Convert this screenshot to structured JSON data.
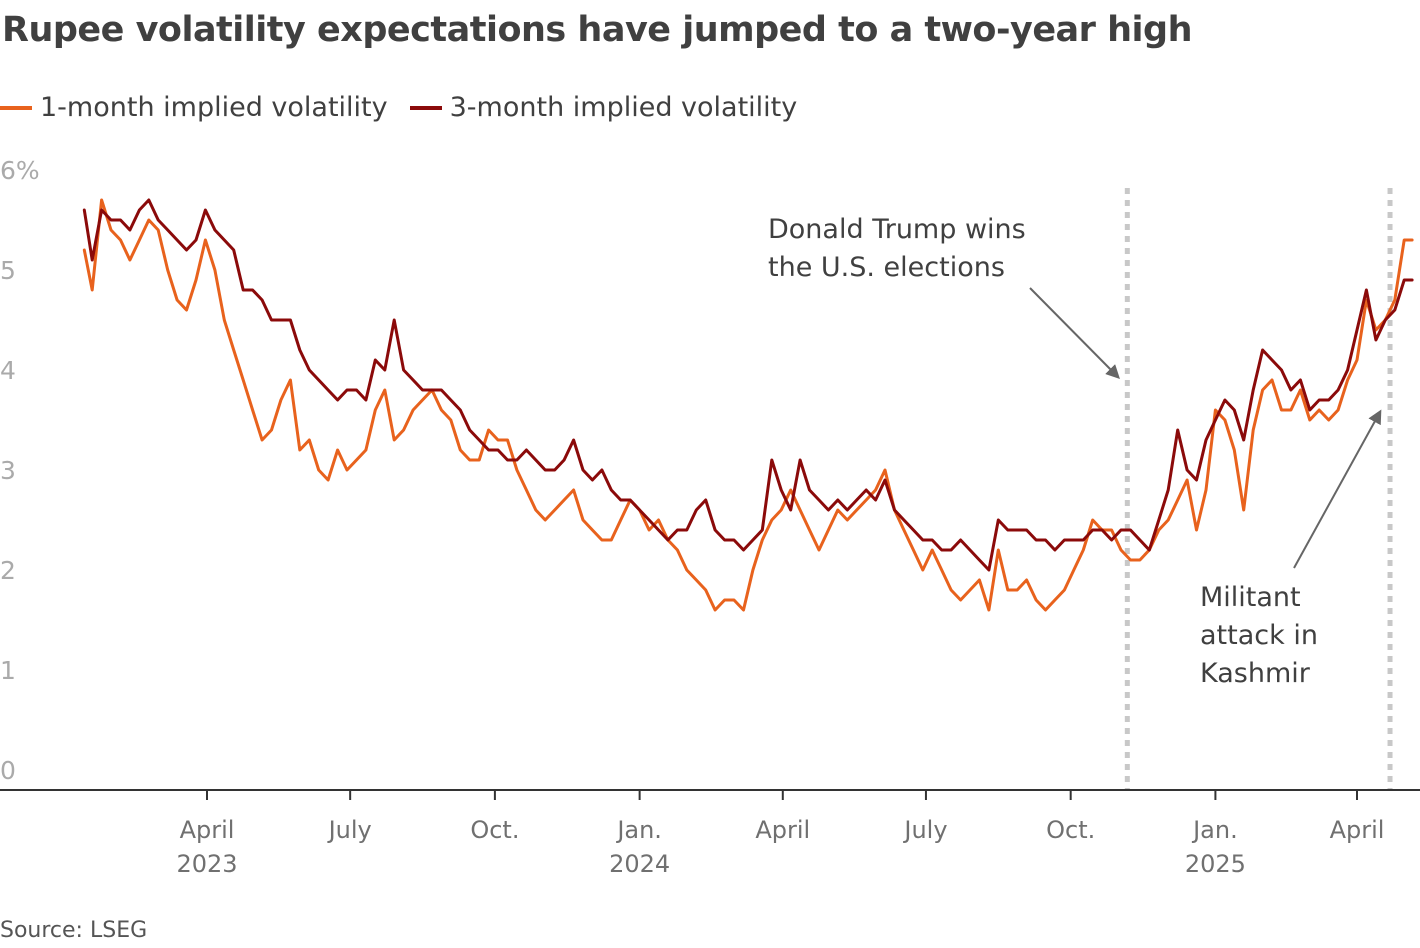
{
  "colors": {
    "series_1m": "#e8621d",
    "series_3m": "#8b0a0a",
    "text": "#404040",
    "tick_label": "#707070",
    "y_label": "#aaaaaa",
    "axis": "#333333",
    "event_line": "#c8c8c8",
    "arrow": "#666666"
  },
  "source": "Source: LSEG",
  "chart_data": {
    "type": "line",
    "title": "Rupee volatility expectations have jumped to a two-year high",
    "xlabel": "",
    "ylabel": "",
    "ylim": [
      0,
      6
    ],
    "y_unit": "%",
    "y_ticks": [
      {
        "value": 0,
        "label": "0"
      },
      {
        "value": 1,
        "label": "1"
      },
      {
        "value": 2,
        "label": "2"
      },
      {
        "value": 3,
        "label": "3"
      },
      {
        "value": 4,
        "label": "4"
      },
      {
        "value": 5,
        "label": "5"
      },
      {
        "value": 6,
        "label": "6%"
      }
    ],
    "x_range": [
      "2023-01-01",
      "2025-05-06"
    ],
    "x_ticks": [
      {
        "date": "2023-04-01",
        "label": "April",
        "year": "2023"
      },
      {
        "date": "2023-07-01",
        "label": "July",
        "year": ""
      },
      {
        "date": "2023-10-01",
        "label": "Oct.",
        "year": ""
      },
      {
        "date": "2024-01-01",
        "label": "Jan.",
        "year": "2024"
      },
      {
        "date": "2024-04-01",
        "label": "April",
        "year": ""
      },
      {
        "date": "2024-07-01",
        "label": "July",
        "year": ""
      },
      {
        "date": "2024-10-01",
        "label": "Oct.",
        "year": ""
      },
      {
        "date": "2025-01-01",
        "label": "Jan.",
        "year": "2025"
      },
      {
        "date": "2025-04-01",
        "label": "April",
        "year": ""
      }
    ],
    "series": [
      {
        "name": "1-month implied volatility",
        "x": [
          "2023-01-13",
          "2023-01-18",
          "2023-01-24",
          "2023-01-30",
          "2023-02-05",
          "2023-02-11",
          "2023-02-17",
          "2023-02-23",
          "2023-03-01",
          "2023-03-07",
          "2023-03-13",
          "2023-03-19",
          "2023-03-25",
          "2023-03-31",
          "2023-04-06",
          "2023-04-12",
          "2023-04-18",
          "2023-04-24",
          "2023-04-30",
          "2023-05-06",
          "2023-05-12",
          "2023-05-18",
          "2023-05-24",
          "2023-05-30",
          "2023-06-05",
          "2023-06-11",
          "2023-06-17",
          "2023-06-23",
          "2023-06-29",
          "2023-07-05",
          "2023-07-11",
          "2023-07-17",
          "2023-07-23",
          "2023-07-29",
          "2023-08-04",
          "2023-08-10",
          "2023-08-16",
          "2023-08-22",
          "2023-08-28",
          "2023-09-03",
          "2023-09-09",
          "2023-09-15",
          "2023-09-21",
          "2023-09-27",
          "2023-10-03",
          "2023-10-09",
          "2023-10-15",
          "2023-10-21",
          "2023-10-27",
          "2023-11-02",
          "2023-11-08",
          "2023-11-14",
          "2023-11-20",
          "2023-11-26",
          "2023-12-02",
          "2023-12-08",
          "2023-12-14",
          "2023-12-20",
          "2023-12-26",
          "2024-01-01",
          "2024-01-07",
          "2024-01-13",
          "2024-01-19",
          "2024-01-25",
          "2024-01-31",
          "2024-02-06",
          "2024-02-12",
          "2024-02-18",
          "2024-02-24",
          "2024-03-01",
          "2024-03-07",
          "2024-03-13",
          "2024-03-19",
          "2024-03-25",
          "2024-03-31",
          "2024-04-06",
          "2024-04-12",
          "2024-04-18",
          "2024-04-24",
          "2024-04-30",
          "2024-05-06",
          "2024-05-12",
          "2024-05-18",
          "2024-05-24",
          "2024-05-30",
          "2024-06-05",
          "2024-06-11",
          "2024-06-17",
          "2024-06-23",
          "2024-06-29",
          "2024-07-05",
          "2024-07-11",
          "2024-07-17",
          "2024-07-23",
          "2024-07-29",
          "2024-08-04",
          "2024-08-10",
          "2024-08-16",
          "2024-08-22",
          "2024-08-28",
          "2024-09-03",
          "2024-09-09",
          "2024-09-15",
          "2024-09-21",
          "2024-09-27",
          "2024-10-03",
          "2024-10-09",
          "2024-10-15",
          "2024-10-21",
          "2024-10-27",
          "2024-11-02",
          "2024-11-08",
          "2024-11-14",
          "2024-11-20",
          "2024-11-26",
          "2024-12-02",
          "2024-12-08",
          "2024-12-14",
          "2024-12-20",
          "2024-12-26",
          "2025-01-01",
          "2025-01-07",
          "2025-01-13",
          "2025-01-19",
          "2025-01-25",
          "2025-01-31",
          "2025-02-06",
          "2025-02-12",
          "2025-02-18",
          "2025-02-24",
          "2025-03-02",
          "2025-03-08",
          "2025-03-14",
          "2025-03-20",
          "2025-03-26",
          "2025-04-01",
          "2025-04-07",
          "2025-04-13",
          "2025-04-19",
          "2025-04-25",
          "2025-05-01",
          "2025-05-06"
        ],
        "values": [
          5.2,
          4.8,
          5.7,
          5.4,
          5.3,
          5.1,
          5.3,
          5.5,
          5.4,
          5.0,
          4.7,
          4.6,
          4.9,
          5.3,
          5.0,
          4.5,
          4.2,
          3.9,
          3.6,
          3.3,
          3.4,
          3.7,
          3.9,
          3.2,
          3.3,
          3.0,
          2.9,
          3.2,
          3.0,
          3.1,
          3.2,
          3.6,
          3.8,
          3.3,
          3.4,
          3.6,
          3.7,
          3.8,
          3.6,
          3.5,
          3.2,
          3.1,
          3.1,
          3.4,
          3.3,
          3.3,
          3.0,
          2.8,
          2.6,
          2.5,
          2.6,
          2.7,
          2.8,
          2.5,
          2.4,
          2.3,
          2.3,
          2.5,
          2.7,
          2.6,
          2.4,
          2.5,
          2.3,
          2.2,
          2.0,
          1.9,
          1.8,
          1.6,
          1.7,
          1.7,
          1.6,
          2.0,
          2.3,
          2.5,
          2.6,
          2.8,
          2.6,
          2.4,
          2.2,
          2.4,
          2.6,
          2.5,
          2.6,
          2.7,
          2.8,
          3.0,
          2.6,
          2.4,
          2.2,
          2.0,
          2.2,
          2.0,
          1.8,
          1.7,
          1.8,
          1.9,
          1.6,
          2.2,
          1.8,
          1.8,
          1.9,
          1.7,
          1.6,
          1.7,
          1.8,
          2.0,
          2.2,
          2.5,
          2.4,
          2.4,
          2.2,
          2.1,
          2.1,
          2.2,
          2.4,
          2.5,
          2.7,
          2.9,
          2.4,
          2.8,
          3.6,
          3.5,
          3.2,
          2.6,
          3.4,
          3.8,
          3.9,
          3.6,
          3.6,
          3.8,
          3.5,
          3.6,
          3.5,
          3.6,
          3.9,
          4.1,
          4.7,
          4.4,
          4.5,
          4.7,
          5.3,
          5.3
        ],
        "color": "#e8621d"
      },
      {
        "name": "3-month implied volatility",
        "x": [
          "2023-01-13",
          "2023-01-18",
          "2023-01-24",
          "2023-01-30",
          "2023-02-05",
          "2023-02-11",
          "2023-02-17",
          "2023-02-23",
          "2023-03-01",
          "2023-03-07",
          "2023-03-13",
          "2023-03-19",
          "2023-03-25",
          "2023-03-31",
          "2023-04-06",
          "2023-04-12",
          "2023-04-18",
          "2023-04-24",
          "2023-04-30",
          "2023-05-06",
          "2023-05-12",
          "2023-05-18",
          "2023-05-24",
          "2023-05-30",
          "2023-06-05",
          "2023-06-11",
          "2023-06-17",
          "2023-06-23",
          "2023-06-29",
          "2023-07-05",
          "2023-07-11",
          "2023-07-17",
          "2023-07-23",
          "2023-07-29",
          "2023-08-04",
          "2023-08-10",
          "2023-08-16",
          "2023-08-22",
          "2023-08-28",
          "2023-09-03",
          "2023-09-09",
          "2023-09-15",
          "2023-09-21",
          "2023-09-27",
          "2023-10-03",
          "2023-10-09",
          "2023-10-15",
          "2023-10-21",
          "2023-10-27",
          "2023-11-02",
          "2023-11-08",
          "2023-11-14",
          "2023-11-20",
          "2023-11-26",
          "2023-12-02",
          "2023-12-08",
          "2023-12-14",
          "2023-12-20",
          "2023-12-26",
          "2024-01-01",
          "2024-01-07",
          "2024-01-13",
          "2024-01-19",
          "2024-01-25",
          "2024-01-31",
          "2024-02-06",
          "2024-02-12",
          "2024-02-18",
          "2024-02-24",
          "2024-03-01",
          "2024-03-07",
          "2024-03-13",
          "2024-03-19",
          "2024-03-25",
          "2024-03-31",
          "2024-04-06",
          "2024-04-12",
          "2024-04-18",
          "2024-04-24",
          "2024-04-30",
          "2024-05-06",
          "2024-05-12",
          "2024-05-18",
          "2024-05-24",
          "2024-05-30",
          "2024-06-05",
          "2024-06-11",
          "2024-06-17",
          "2024-06-23",
          "2024-06-29",
          "2024-07-05",
          "2024-07-11",
          "2024-07-17",
          "2024-07-23",
          "2024-07-29",
          "2024-08-04",
          "2024-08-10",
          "2024-08-16",
          "2024-08-22",
          "2024-08-28",
          "2024-09-03",
          "2024-09-09",
          "2024-09-15",
          "2024-09-21",
          "2024-09-27",
          "2024-10-03",
          "2024-10-09",
          "2024-10-15",
          "2024-10-21",
          "2024-10-27",
          "2024-11-02",
          "2024-11-08",
          "2024-11-14",
          "2024-11-20",
          "2024-11-26",
          "2024-12-02",
          "2024-12-08",
          "2024-12-14",
          "2024-12-20",
          "2024-12-26",
          "2025-01-01",
          "2025-01-07",
          "2025-01-13",
          "2025-01-19",
          "2025-01-25",
          "2025-01-31",
          "2025-02-06",
          "2025-02-12",
          "2025-02-18",
          "2025-02-24",
          "2025-03-02",
          "2025-03-08",
          "2025-03-14",
          "2025-03-20",
          "2025-03-26",
          "2025-04-01",
          "2025-04-07",
          "2025-04-13",
          "2025-04-19",
          "2025-04-25",
          "2025-05-01",
          "2025-05-06"
        ],
        "values": [
          5.6,
          5.1,
          5.6,
          5.5,
          5.5,
          5.4,
          5.6,
          5.7,
          5.5,
          5.4,
          5.3,
          5.2,
          5.3,
          5.6,
          5.4,
          5.3,
          5.2,
          4.8,
          4.8,
          4.7,
          4.5,
          4.5,
          4.5,
          4.2,
          4.0,
          3.9,
          3.8,
          3.7,
          3.8,
          3.8,
          3.7,
          4.1,
          4.0,
          4.5,
          4.0,
          3.9,
          3.8,
          3.8,
          3.8,
          3.7,
          3.6,
          3.4,
          3.3,
          3.2,
          3.2,
          3.1,
          3.1,
          3.2,
          3.1,
          3.0,
          3.0,
          3.1,
          3.3,
          3.0,
          2.9,
          3.0,
          2.8,
          2.7,
          2.7,
          2.6,
          2.5,
          2.4,
          2.3,
          2.4,
          2.4,
          2.6,
          2.7,
          2.4,
          2.3,
          2.3,
          2.2,
          2.3,
          2.4,
          3.1,
          2.8,
          2.6,
          3.1,
          2.8,
          2.7,
          2.6,
          2.7,
          2.6,
          2.7,
          2.8,
          2.7,
          2.9,
          2.6,
          2.5,
          2.4,
          2.3,
          2.3,
          2.2,
          2.2,
          2.3,
          2.2,
          2.1,
          2.0,
          2.5,
          2.4,
          2.4,
          2.4,
          2.3,
          2.3,
          2.2,
          2.3,
          2.3,
          2.3,
          2.4,
          2.4,
          2.3,
          2.4,
          2.4,
          2.3,
          2.2,
          2.5,
          2.8,
          3.4,
          3.0,
          2.9,
          3.3,
          3.5,
          3.7,
          3.6,
          3.3,
          3.8,
          4.2,
          4.1,
          4.0,
          3.8,
          3.9,
          3.6,
          3.7,
          3.7,
          3.8,
          4.0,
          4.4,
          4.8,
          4.3,
          4.5,
          4.6,
          4.9,
          4.9
        ],
        "color": "#8b0a0a"
      }
    ],
    "events": [
      {
        "date": "2024-11-06",
        "lines": [
          "Donald Trump wins",
          "the U.S. elections"
        ]
      },
      {
        "date": "2025-04-22",
        "lines": [
          "Militant",
          "attack in",
          "Kashmir"
        ]
      }
    ]
  }
}
